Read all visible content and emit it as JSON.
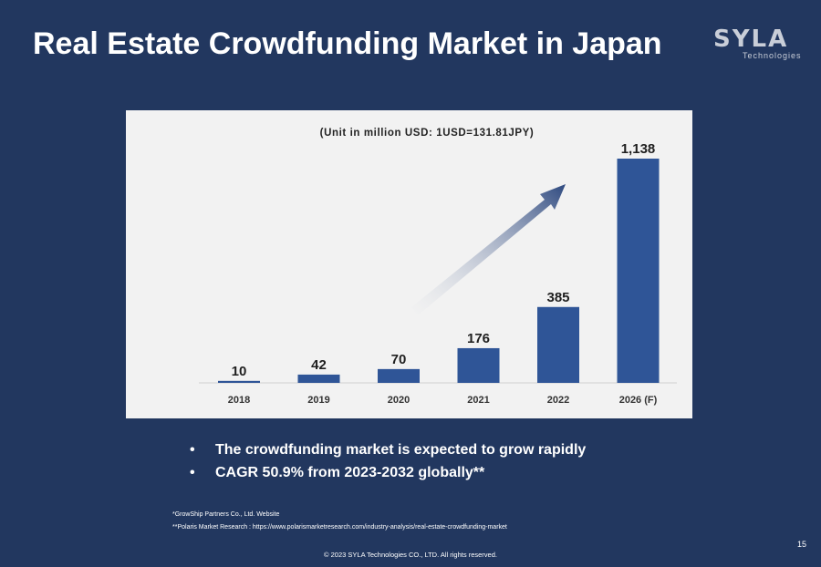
{
  "slide": {
    "title": "Real Estate Crowdfunding Market in Japan",
    "logo": {
      "name": "SYLA",
      "subtitle": "Technologies"
    },
    "page_number": "15",
    "copyright": "© 2023 SYLA Technologies CO., LTD. All rights reserved."
  },
  "bullets": [
    "The crowdfunding market is expected to grow rapidly",
    "CAGR 50.9% from 2023-2032 globally**"
  ],
  "bullet_symbol": "•",
  "footnotes": [
    "*GrowShip Partners Co., Ltd. Website",
    "**Polaris Market Research : https://www.polarismarketresearch.com/industry-analysis/real-estate-crowdfunding-market"
  ],
  "colors": {
    "background": "#22375f",
    "bar": "#2f5597",
    "chart_bg": "#f2f2f2"
  },
  "chart_data": {
    "type": "bar",
    "title": "(Unit in million USD: 1USD=131.81JPY)",
    "categories": [
      "2018",
      "2019",
      "2020",
      "2021",
      "2022",
      "2026 (F)"
    ],
    "values": [
      10,
      42,
      70,
      176,
      385,
      1138
    ],
    "value_labels": [
      "10",
      "42",
      "70",
      "176",
      "385",
      "1,138"
    ],
    "ylim": [
      0,
      1138
    ],
    "xlabel": "",
    "ylabel": "",
    "grid": false,
    "annotation": "growth-arrow"
  }
}
